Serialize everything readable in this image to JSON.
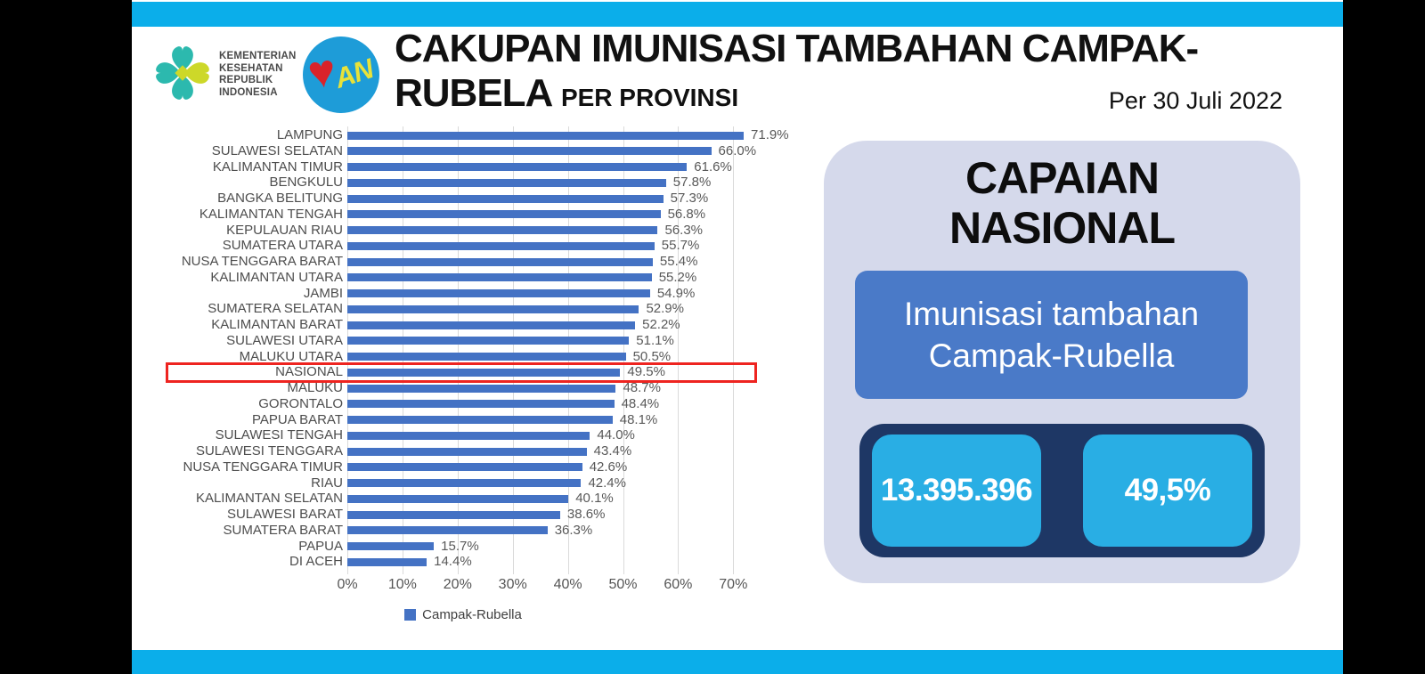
{
  "header": {
    "kemenkes_logo": {
      "lines": [
        "KEMENTERIAN",
        "KESEHATAN",
        "REPUBLIK",
        "INDONESIA"
      ]
    },
    "bian_logo": {
      "text": "AN"
    },
    "title_line1": "CAKUPAN IMUNISASI TAMBAHAN CAMPAK-",
    "title_line2": "RUBELA",
    "title_suffix": "PER PROVINSI",
    "date_label": "Per 30 Juli 2022"
  },
  "chart_data": {
    "type": "bar",
    "orientation": "horizontal",
    "series_name": "Campak-Rubella",
    "categories": [
      "LAMPUNG",
      "SULAWESI SELATAN",
      "KALIMANTAN TIMUR",
      "BENGKULU",
      "BANGKA BELITUNG",
      "KALIMANTAN TENGAH",
      "KEPULAUAN RIAU",
      "SUMATERA UTARA",
      "NUSA TENGGARA BARAT",
      "KALIMANTAN UTARA",
      "JAMBI",
      "SUMATERA SELATAN",
      "KALIMANTAN BARAT",
      "SULAWESI UTARA",
      "MALUKU UTARA",
      "NASIONAL",
      "MALUKU",
      "GORONTALO",
      "PAPUA BARAT",
      "SULAWESI TENGAH",
      "SULAWESI TENGGARA",
      "NUSA TENGGARA TIMUR",
      "RIAU",
      "KALIMANTAN SELATAN",
      "SULAWESI BARAT",
      "SUMATERA BARAT",
      "PAPUA",
      "DI ACEH"
    ],
    "values": [
      71.9,
      66.0,
      61.6,
      57.8,
      57.3,
      56.8,
      56.3,
      55.7,
      55.4,
      55.2,
      54.9,
      52.9,
      52.2,
      51.1,
      50.5,
      49.5,
      48.7,
      48.4,
      48.1,
      44.0,
      43.4,
      42.6,
      42.4,
      40.1,
      38.6,
      36.3,
      15.7,
      14.4
    ],
    "value_suffix": "%",
    "highlighted_category": "NASIONAL",
    "x_ticks": [
      "0%",
      "10%",
      "20%",
      "30%",
      "40%",
      "50%",
      "60%",
      "70%"
    ],
    "xlim": [
      0,
      74
    ],
    "grid": true,
    "legend": [
      "Campak-Rubella"
    ],
    "legend_position": "bottom"
  },
  "capaian_panel": {
    "title_line1": "CAPAIAN",
    "title_line2": "NASIONAL",
    "program_line1": "Imunisasi tambahan",
    "program_line2": "Campak-Rubella",
    "stat_absolute": "13.395.396",
    "stat_percent": "49,5%"
  },
  "colors": {
    "strip_cyan": "#0BAEEA",
    "bar_blue": "#4472C4",
    "highlight_red": "#EE2420",
    "panel_lavender": "#D5D9EB",
    "panel_blue": "#4A7AC8",
    "panel_navy": "#1E3765",
    "stat_cyan": "#29AEE4"
  }
}
